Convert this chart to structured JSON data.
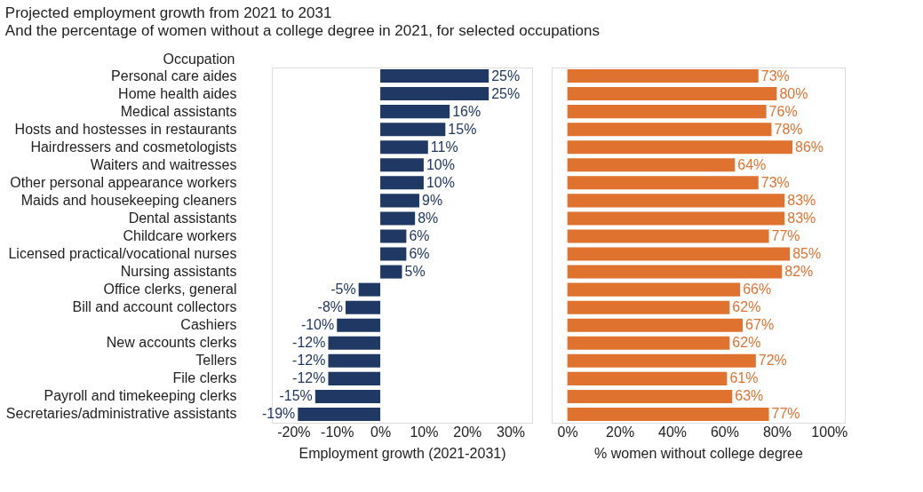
{
  "chart_data": [
    {
      "type": "bar",
      "orientation": "horizontal",
      "title": "Projected employment growth from 2021 to 2031",
      "subtitle": "And the percentage of women without a college degree in 2021, for selected occupations",
      "ylabel": "Occupation",
      "xlabel": "Employment growth (2021-2031)",
      "categories": [
        "Personal care aides",
        "Home health aides",
        "Medical assistants",
        "Hosts and hostesses in restaurants",
        "Hairdressers and cosmetologists",
        "Waiters and waitresses",
        "Other personal appearance workers",
        "Maids and housekeeping cleaners",
        "Dental assistants",
        "Childcare workers",
        "Licensed practical/vocational nurses",
        "Nursing assistants",
        "Office clerks, general",
        "Bill and account collectors",
        "Cashiers",
        "New accounts clerks",
        "Tellers",
        "File clerks",
        "Payroll and timekeeping clerks",
        "Secretaries/administrative assistants"
      ],
      "values": [
        25,
        25,
        16,
        15,
        11,
        10,
        10,
        9,
        8,
        6,
        6,
        5,
        -5,
        -8,
        -10,
        -12,
        -12,
        -12,
        -15,
        -19
      ],
      "value_labels": [
        "25%",
        "25%",
        "16%",
        "15%",
        "11%",
        "10%",
        "10%",
        "9%",
        "8%",
        "6%",
        "6%",
        "5%",
        "-5%",
        "-8%",
        "-10%",
        "-12%",
        "-12%",
        "-12%",
        "-15%",
        "-19%"
      ],
      "color": "#1f3864",
      "xlim": [
        -25,
        35
      ],
      "xticks": [
        {
          "value": -20,
          "label": "-20%"
        },
        {
          "value": -10,
          "label": "-10%"
        },
        {
          "value": 0,
          "label": "0%"
        },
        {
          "value": 10,
          "label": "10%"
        },
        {
          "value": 20,
          "label": "20%"
        },
        {
          "value": 30,
          "label": "30%"
        }
      ],
      "grid": false
    },
    {
      "type": "bar",
      "orientation": "horizontal",
      "xlabel": "% women without college degree",
      "categories": [
        "Personal care aides",
        "Home health aides",
        "Medical assistants",
        "Hosts and hostesses in restaurants",
        "Hairdressers and cosmetologists",
        "Waiters and waitresses",
        "Other personal appearance workers",
        "Maids and housekeeping cleaners",
        "Dental assistants",
        "Childcare workers",
        "Licensed practical/vocational nurses",
        "Nursing assistants",
        "Office clerks, general",
        "Bill and account collectors",
        "Cashiers",
        "New accounts clerks",
        "Tellers",
        "File clerks",
        "Payroll and timekeeping clerks",
        "Secretaries/administrative assistants"
      ],
      "values": [
        73,
        80,
        76,
        78,
        86,
        64,
        73,
        83,
        83,
        77,
        85,
        82,
        66,
        62,
        67,
        62,
        72,
        61,
        63,
        77
      ],
      "value_labels": [
        "73%",
        "80%",
        "76%",
        "78%",
        "86%",
        "64%",
        "73%",
        "83%",
        "83%",
        "77%",
        "85%",
        "82%",
        "66%",
        "62%",
        "67%",
        "62%",
        "72%",
        "61%",
        "63%",
        "77%"
      ],
      "color": "#e07230",
      "xlim": [
        -6,
        106
      ],
      "xticks": [
        {
          "value": 0,
          "label": "0%"
        },
        {
          "value": 20,
          "label": "20%"
        },
        {
          "value": 40,
          "label": "40%"
        },
        {
          "value": 60,
          "label": "60%"
        },
        {
          "value": 80,
          "label": "80%"
        },
        {
          "value": 100,
          "label": "100%"
        }
      ],
      "grid": false,
      "tick_labels": "x"
    }
  ]
}
